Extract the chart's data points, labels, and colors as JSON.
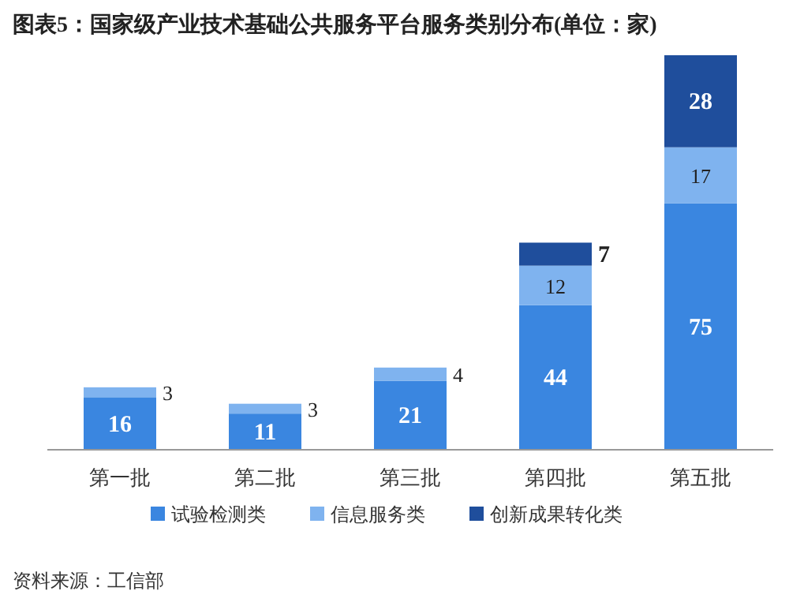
{
  "chart_data": {
    "type": "bar",
    "title": "图表5：国家级产业技术基础公共服务平台服务类别分布(单位：家)",
    "categories": [
      "第一批",
      "第二批",
      "第三批",
      "第四批",
      "第五批"
    ],
    "stacked": true,
    "data_labels": true,
    "legend": "bottom",
    "series": [
      {
        "name": "试验检测类",
        "color": "#3a86e0",
        "values": [
          16,
          11,
          21,
          44,
          75
        ]
      },
      {
        "name": "信息服务类",
        "color": "#7fb3ef",
        "values": [
          3,
          3,
          4,
          12,
          17
        ]
      },
      {
        "name": "创新成果转化类",
        "color": "#1f4e9c",
        "values": [
          null,
          null,
          null,
          7,
          28
        ]
      }
    ],
    "annotations": [
      "资料来源：工信部"
    ]
  }
}
